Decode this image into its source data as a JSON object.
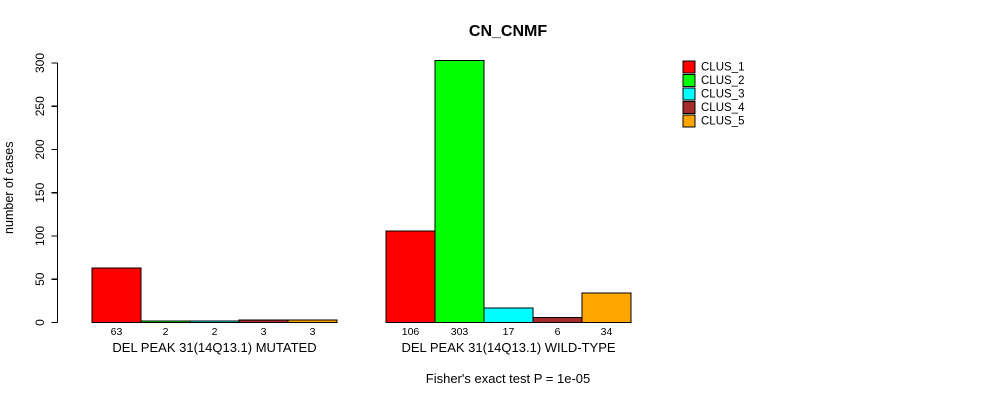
{
  "chart_data": {
    "type": "bar",
    "title": "CN_CNMF",
    "ylabel": "number of cases",
    "xlabel": "",
    "ylim": [
      0,
      300
    ],
    "yticks": [
      0,
      50,
      100,
      150,
      200,
      250,
      300
    ],
    "grid": false,
    "legend_position": "right",
    "series_names": [
      "CLUS_1",
      "CLUS_2",
      "CLUS_3",
      "CLUS_4",
      "CLUS_5"
    ],
    "colors": [
      "#FF0000",
      "#00FF00",
      "#00FFFF",
      "#A52A2A",
      "#FFA500"
    ],
    "groups": [
      {
        "label": "DEL PEAK 31(14Q13.1) MUTATED",
        "values": [
          63,
          2,
          2,
          3,
          3
        ]
      },
      {
        "label": "DEL PEAK 31(14Q13.1) WILD-TYPE",
        "values": [
          106,
          303,
          17,
          6,
          34
        ]
      }
    ],
    "bar_value_labels": [
      [
        "63",
        "2",
        "2",
        "3",
        "3"
      ],
      [
        "106",
        "303",
        "17",
        "6",
        "34"
      ]
    ],
    "footnote": "Fisher's exact test P = 1e-05"
  },
  "style": {
    "bar_border_color": "#000000",
    "axis_color": "#000000",
    "background_color": "#ffffff"
  }
}
